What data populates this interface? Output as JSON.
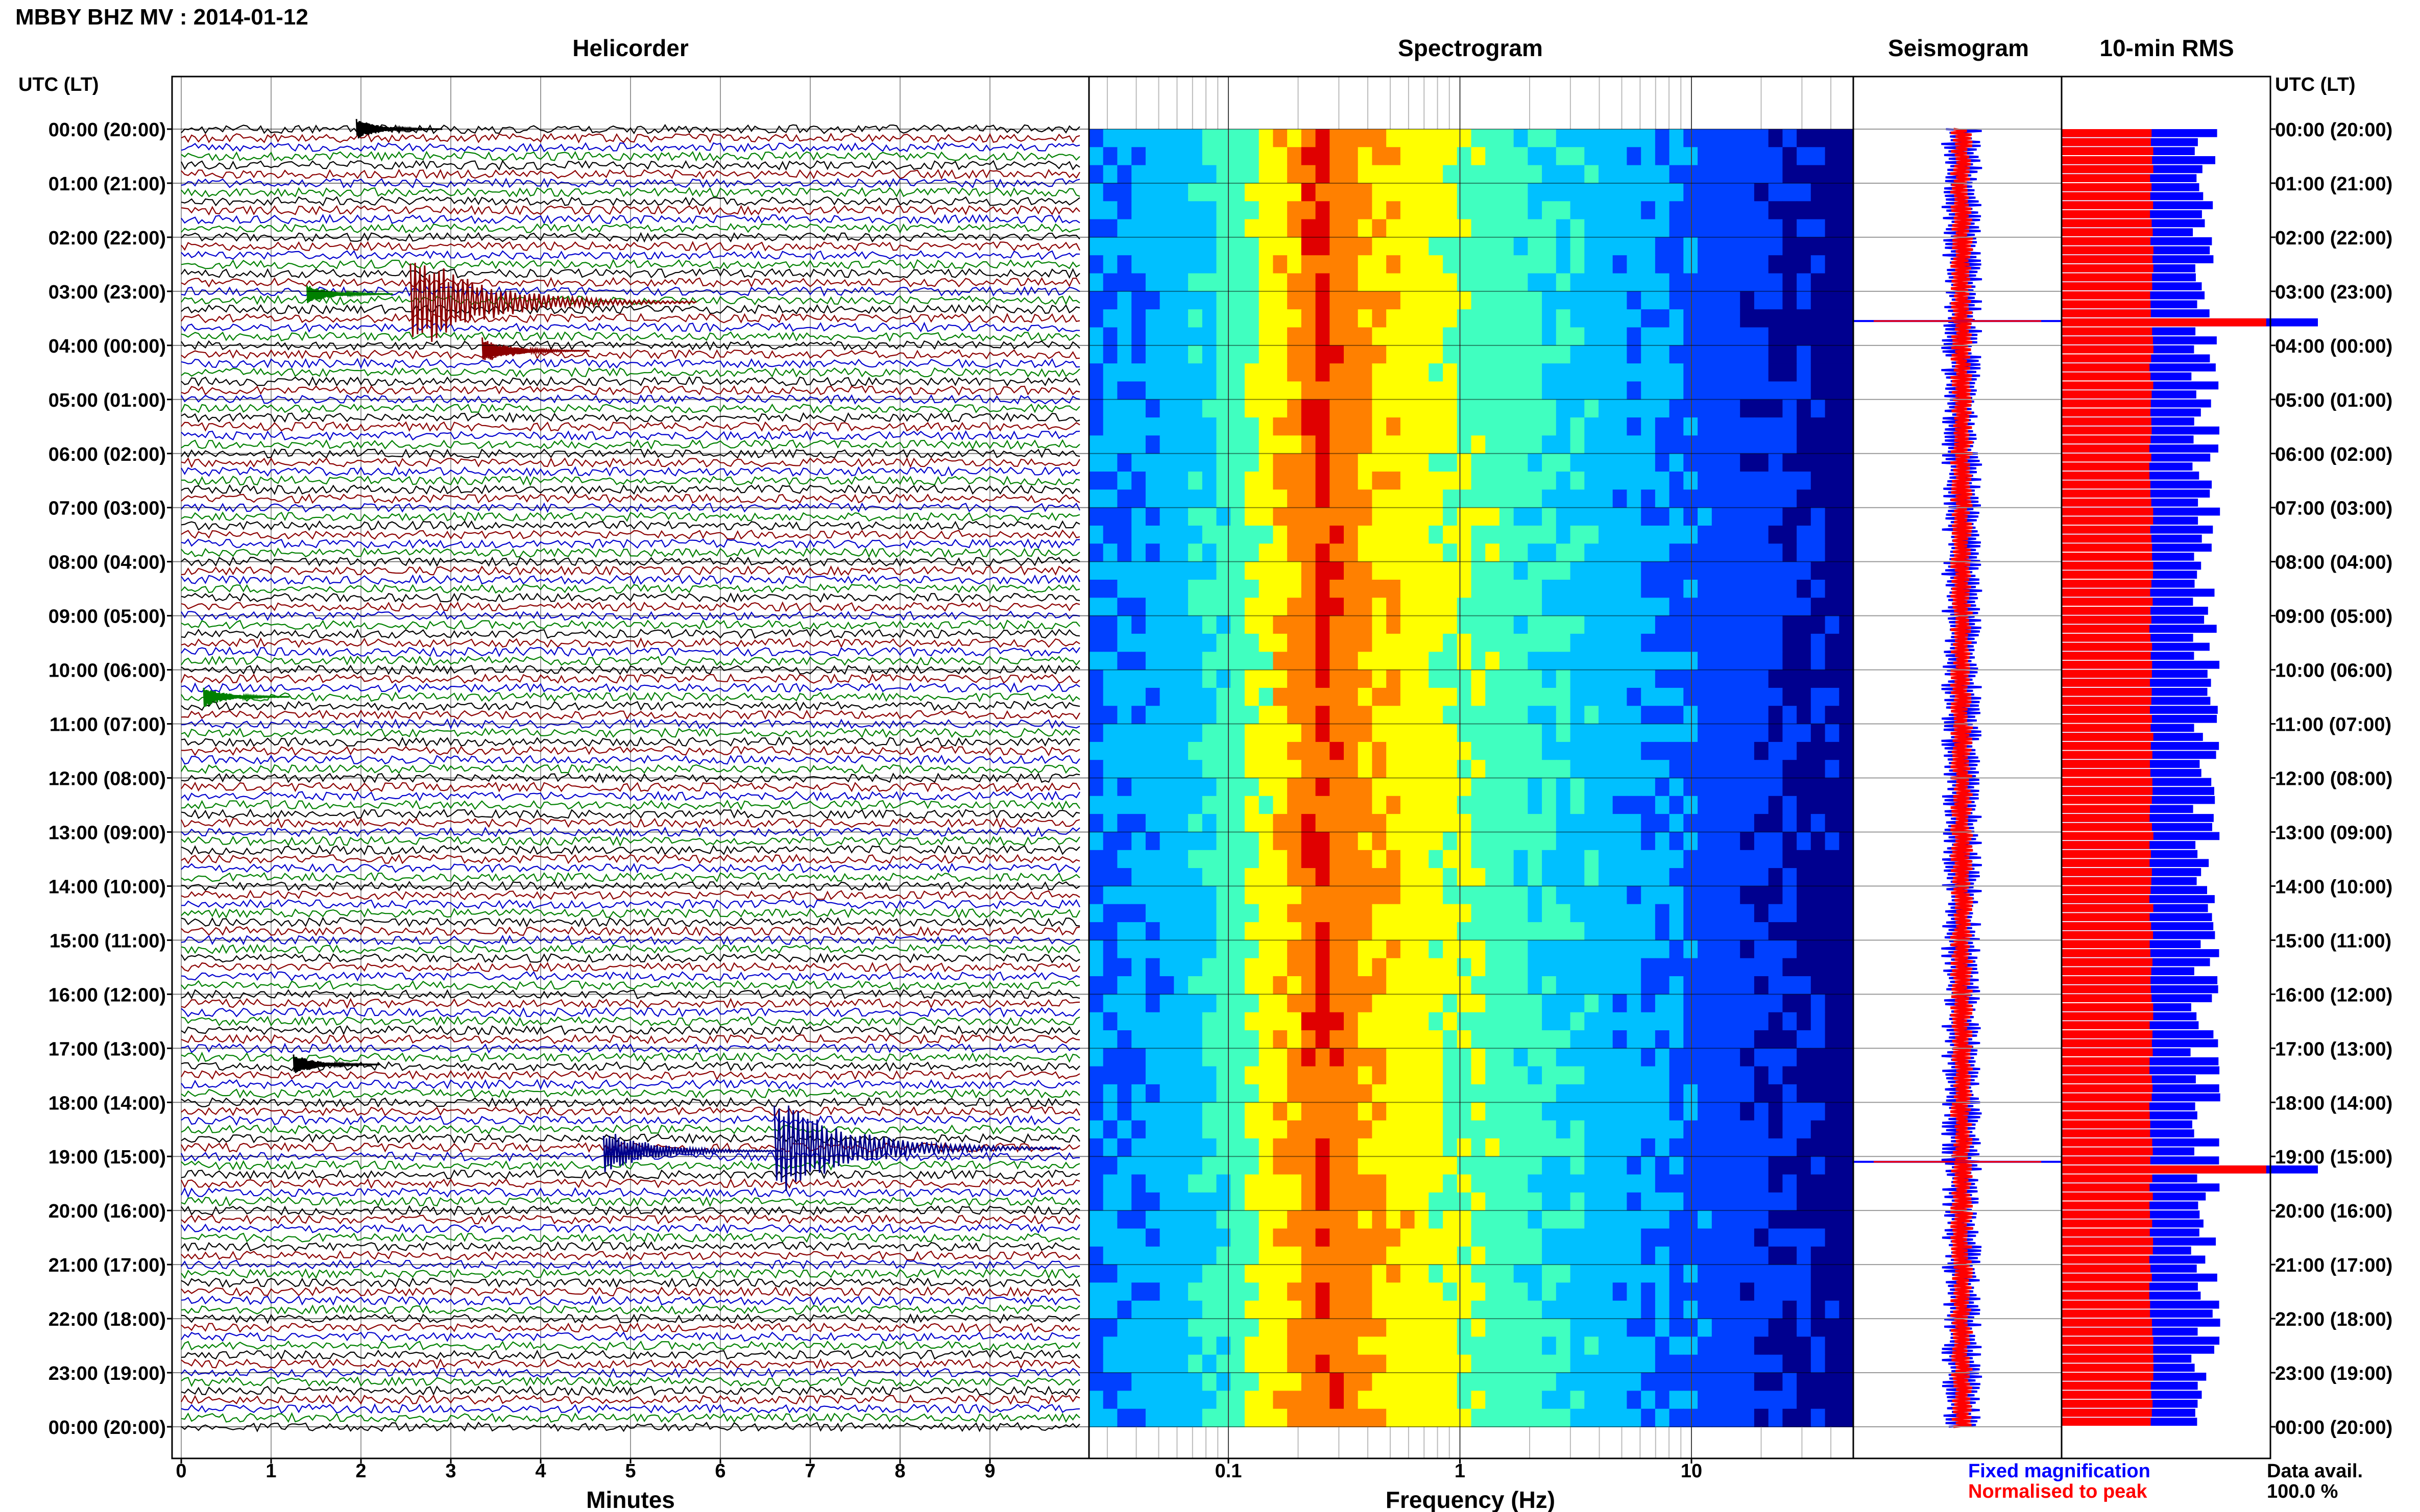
{
  "header": {
    "station_title": "MBBY BHZ MV : 2014-01-12",
    "time_axis_label": "UTC (LT)"
  },
  "panels": {
    "helicorder": "Helicorder",
    "spectrogram": "Spectrogram",
    "seismogram": "Seismogram",
    "rms": "10-min RMS"
  },
  "time_ticks": [
    "00:00 (20:00)",
    "01:00 (21:00)",
    "02:00 (22:00)",
    "03:00 (23:00)",
    "04:00 (00:00)",
    "05:00 (01:00)",
    "06:00 (02:00)",
    "07:00 (03:00)",
    "08:00 (04:00)",
    "09:00 (05:00)",
    "10:00 (06:00)",
    "11:00 (07:00)",
    "12:00 (08:00)",
    "13:00 (09:00)",
    "14:00 (10:00)",
    "15:00 (11:00)",
    "16:00 (12:00)",
    "17:00 (13:00)",
    "18:00 (14:00)",
    "19:00 (15:00)",
    "20:00 (16:00)",
    "21:00 (17:00)",
    "22:00 (18:00)",
    "23:00 (19:00)",
    "00:00 (20:00)"
  ],
  "footer": {
    "legend_fixed": "Fixed magnification",
    "legend_normalised": "Normalised to peak",
    "data_avail_label": "Data avail.",
    "data_avail_value": "100.0 %"
  },
  "chart_data": [
    {
      "type": "line",
      "name": "helicorder",
      "title": "Helicorder",
      "xlabel": "Minutes",
      "x_ticks": [
        "0",
        "1",
        "2",
        "3",
        "4",
        "5",
        "6",
        "7",
        "8",
        "9"
      ],
      "xlim": [
        0,
        10
      ],
      "ylim_hours": [
        0,
        24
      ],
      "traces_per_hour": 6,
      "trace_colors": [
        "#000000",
        "#8b0000",
        "#0000cd",
        "#008000"
      ],
      "events": [
        {
          "hour": 3.2,
          "minute": 2.55,
          "amp": 6,
          "color": "#8b0000"
        },
        {
          "hour": 4.1,
          "minute": 3.35,
          "amp": 1.5,
          "color": "#8b0000"
        },
        {
          "hour": 18.85,
          "minute": 6.6,
          "amp": 6,
          "color": "#00008b"
        },
        {
          "hour": 18.9,
          "minute": 4.7,
          "amp": 2.5,
          "color": "#00008b"
        },
        {
          "hour": 17.3,
          "minute": 1.25,
          "amp": 1.2,
          "color": "#000000"
        },
        {
          "hour": 3.05,
          "minute": 1.4,
          "amp": 1.2,
          "color": "#008000"
        },
        {
          "hour": 0.0,
          "minute": 1.95,
          "amp": 1.2,
          "color": "#000000"
        },
        {
          "hour": 10.5,
          "minute": 0.25,
          "amp": 1.2,
          "color": "#008000"
        }
      ]
    },
    {
      "type": "heatmap",
      "name": "spectrogram",
      "title": "Spectrogram",
      "xlabel": "Frequency (Hz)",
      "x_scale": "log",
      "xlim": [
        0.025,
        50
      ],
      "x_ticks": [
        {
          "value": 0.1,
          "label": "0.1"
        },
        {
          "value": 1,
          "label": "1"
        },
        {
          "value": 10,
          "label": "10"
        }
      ],
      "ylim_hours": [
        0,
        24
      ],
      "peak_frequency_hz": 0.25,
      "colormap": [
        "#00008f",
        "#0040ff",
        "#00c0ff",
        "#40ffc0",
        "#ffff00",
        "#ff8000",
        "#e00000"
      ]
    },
    {
      "type": "line",
      "name": "seismogram",
      "title": "Seismogram",
      "ylim_hours": [
        0,
        24
      ],
      "series": [
        {
          "name": "Fixed magnification",
          "color": "#0000ff"
        },
        {
          "name": "Normalised to peak",
          "color": "#ff0000"
        }
      ],
      "spikes_hours": [
        3.55,
        19.1
      ]
    },
    {
      "type": "bar",
      "name": "rms",
      "title": "10-min RMS",
      "orientation": "horizontal",
      "bins_per_hour": 6,
      "ylim_hours": [
        0,
        24
      ],
      "series": [
        {
          "name": "Fixed magnification",
          "color": "#0000ff"
        },
        {
          "name": "Normalised to peak",
          "color": "#ff0000"
        }
      ],
      "normalised_level": 0.43,
      "fixed_base_level": 0.67,
      "spikes": [
        {
          "hour": 3.55,
          "value": 1.0
        },
        {
          "hour": 19.1,
          "value": 1.0
        }
      ]
    }
  ]
}
